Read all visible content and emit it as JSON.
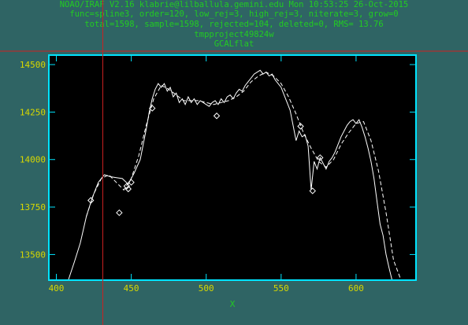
{
  "header": {
    "line1": "NOAO/IRAF V2.16 klabrie@lilballula.gemini.edu Mon 10:53:25 26-Oct-2015",
    "line2": "func=spline3, order=120, low_rej=3, high_rej=3, niterate=3, grow=0",
    "line3": "total=1598, sample=1598, rejected=104, deleted=0, RMS=  13.76",
    "line4": "tmpproject49824w",
    "line5": "GCALflat"
  },
  "colors": {
    "background": "#2f6464",
    "plot_background": "#000000",
    "frame": "#00e5ff",
    "header_text": "#22cc22",
    "tick_labels": "#d8d800",
    "data": "#ffffff",
    "cursor": "#cc2222"
  },
  "chart_data": {
    "type": "line",
    "title": "GCALflat",
    "xlabel": "X",
    "ylabel": "",
    "xlim": [
      395,
      640
    ],
    "ylim": [
      13365,
      14550
    ],
    "x_ticks": [
      400,
      450,
      500,
      550,
      600
    ],
    "y_ticks": [
      13500,
      13750,
      14000,
      14250,
      14500
    ],
    "grid": false,
    "legend": "none",
    "cursor": {
      "x": 431
    },
    "series": [
      {
        "style": "solid",
        "x": [
          408,
          412,
          416,
          420,
          424,
          428,
          432,
          436,
          440,
          444,
          448,
          452,
          456,
          460,
          462,
          464,
          466,
          468,
          470,
          472,
          474,
          476,
          478,
          480,
          482,
          484,
          486,
          488,
          490,
          492,
          494,
          496,
          498,
          500,
          502,
          504,
          506,
          508,
          510,
          512,
          514,
          516,
          518,
          520,
          522,
          524,
          526,
          528,
          530,
          532,
          534,
          536,
          538,
          540,
          542,
          544,
          546,
          548,
          550,
          552,
          554,
          556,
          558,
          560,
          562,
          564,
          566,
          568,
          570,
          572,
          574,
          576,
          578,
          580,
          582,
          584,
          586,
          588,
          590,
          592,
          594,
          596,
          598,
          600,
          602,
          604,
          606,
          608,
          610,
          612,
          614,
          616,
          618,
          620,
          622,
          624,
          626,
          628,
          630
        ],
        "y": [
          13360,
          13460,
          13560,
          13700,
          13800,
          13880,
          13920,
          13910,
          13905,
          13900,
          13870,
          13930,
          14000,
          14160,
          14250,
          14320,
          14370,
          14400,
          14380,
          14400,
          14360,
          14380,
          14330,
          14350,
          14300,
          14320,
          14290,
          14330,
          14300,
          14320,
          14290,
          14310,
          14300,
          14290,
          14280,
          14300,
          14310,
          14290,
          14320,
          14300,
          14330,
          14340,
          14320,
          14350,
          14370,
          14360,
          14390,
          14410,
          14430,
          14450,
          14460,
          14470,
          14450,
          14460,
          14440,
          14450,
          14420,
          14400,
          14380,
          14340,
          14300,
          14260,
          14180,
          14100,
          14150,
          14120,
          14130,
          14070,
          13840,
          13990,
          13950,
          14010,
          13980,
          13950,
          13990,
          14010,
          14040,
          14080,
          14120,
          14150,
          14180,
          14200,
          14210,
          14190,
          14210,
          14170,
          14120,
          14060,
          13990,
          13900,
          13780,
          13660,
          13600,
          13500,
          13430,
          13360,
          13300,
          13250,
          13200
        ]
      },
      {
        "style": "dashed",
        "x": [
          420,
          425,
          430,
          435,
          440,
          445,
          450,
          455,
          460,
          465,
          470,
          475,
          480,
          485,
          490,
          495,
          500,
          505,
          510,
          515,
          520,
          525,
          530,
          535,
          540,
          545,
          550,
          555,
          560,
          565,
          570,
          575,
          580,
          585,
          590,
          595,
          600,
          605,
          610,
          615,
          620,
          625,
          630
        ],
        "y": [
          13700,
          13820,
          13900,
          13920,
          13880,
          13840,
          13900,
          14020,
          14180,
          14320,
          14390,
          14370,
          14340,
          14310,
          14310,
          14310,
          14300,
          14290,
          14300,
          14310,
          14330,
          14360,
          14410,
          14440,
          14460,
          14440,
          14400,
          14330,
          14240,
          14140,
          14060,
          13990,
          13960,
          14000,
          14080,
          14140,
          14190,
          14200,
          14100,
          13940,
          13720,
          13470,
          13250
        ]
      }
    ],
    "rejected_points": {
      "x": [
        423,
        442,
        447,
        448,
        450,
        464,
        507,
        563,
        571,
        576
      ],
      "y": [
        13785,
        13720,
        13860,
        13845,
        13880,
        14270,
        14230,
        14175,
        13835,
        14010
      ]
    }
  }
}
